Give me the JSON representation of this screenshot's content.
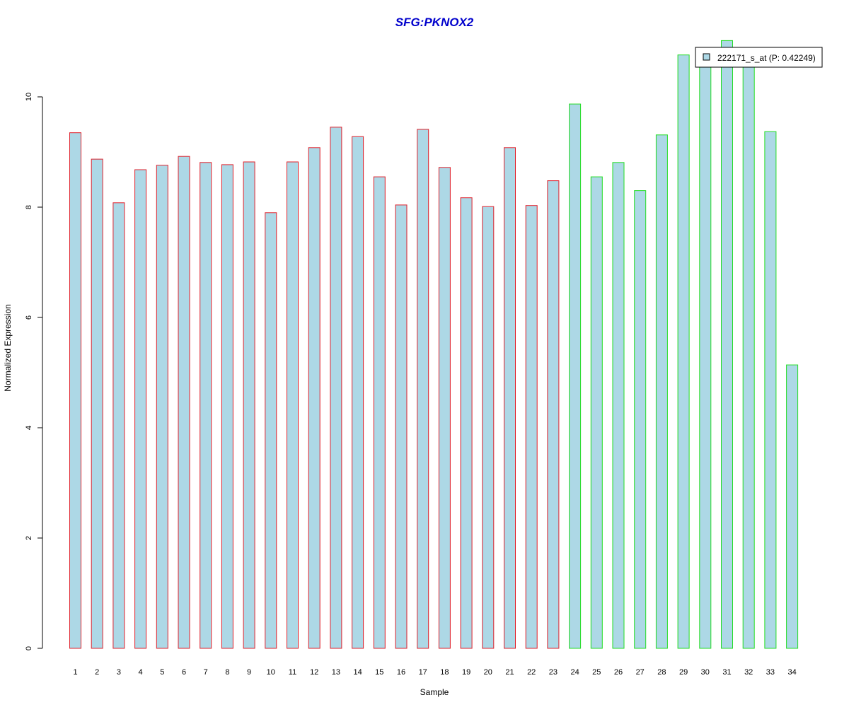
{
  "chart_data": {
    "type": "bar",
    "title": "SFG:PKNOX2",
    "xlabel": "Sample",
    "ylabel": "Normalized Expression",
    "ylim": [
      0,
      11
    ],
    "yticks": [
      0,
      2,
      4,
      6,
      8,
      10
    ],
    "categories": [
      "1",
      "2",
      "3",
      "4",
      "5",
      "6",
      "7",
      "8",
      "9",
      "10",
      "11",
      "12",
      "13",
      "14",
      "15",
      "16",
      "17",
      "18",
      "19",
      "20",
      "21",
      "22",
      "23",
      "24",
      "25",
      "26",
      "27",
      "28",
      "29",
      "30",
      "31",
      "32",
      "33",
      "34"
    ],
    "values": [
      9.35,
      8.87,
      8.08,
      8.68,
      8.76,
      8.92,
      8.81,
      8.77,
      8.82,
      7.9,
      8.82,
      9.08,
      9.45,
      9.28,
      8.55,
      8.04,
      9.41,
      8.72,
      8.17,
      8.01,
      9.08,
      8.03,
      8.48,
      9.87,
      8.55,
      8.81,
      8.3,
      9.31,
      10.76,
      10.7,
      11.02,
      10.65,
      9.37,
      5.14
    ],
    "groups": [
      "red",
      "red",
      "red",
      "red",
      "red",
      "red",
      "red",
      "red",
      "red",
      "red",
      "red",
      "red",
      "red",
      "red",
      "red",
      "red",
      "red",
      "red",
      "red",
      "red",
      "red",
      "red",
      "red",
      "green",
      "green",
      "green",
      "green",
      "green",
      "green",
      "green",
      "green",
      "green",
      "green",
      "green"
    ],
    "colors": {
      "fill": "#ADD8E6",
      "red": "#E0212B",
      "green": "#22DD22",
      "title": "#0000CC"
    },
    "legend": {
      "label": "222171_s_at (P: 0.42249)",
      "position": "top-right"
    },
    "grid": false
  }
}
